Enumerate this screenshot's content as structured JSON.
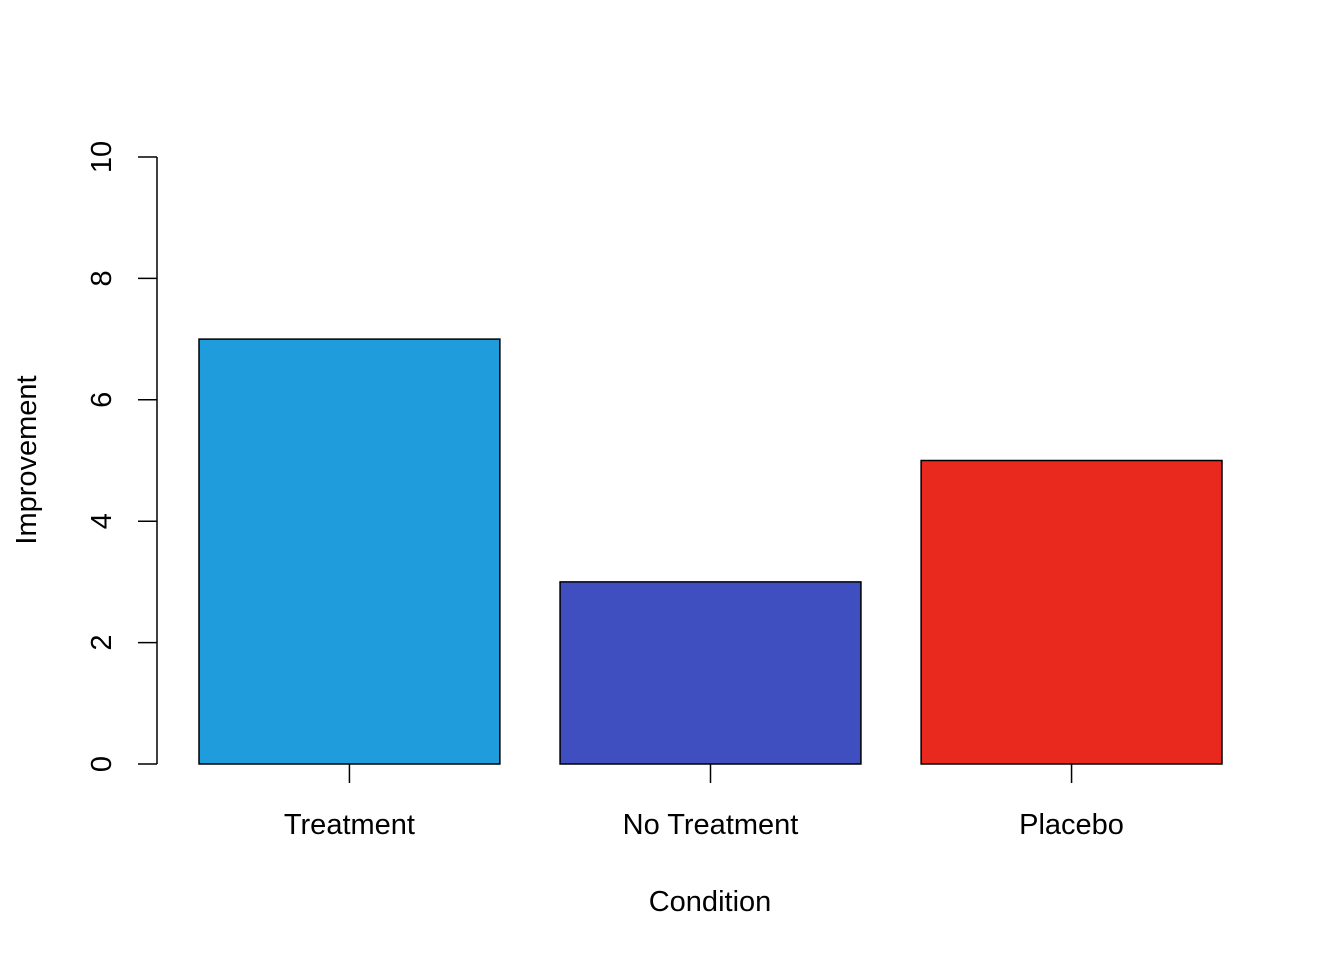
{
  "chart_data": {
    "type": "bar",
    "title": "",
    "xlabel": "Condition",
    "ylabel": "Improvement",
    "categories": [
      "Treatment",
      "No Treatment",
      "Placebo"
    ],
    "values": [
      7,
      3,
      5
    ],
    "colors": [
      "#1e9cdc",
      "#3f4fbf",
      "#e9291e"
    ],
    "ylim": [
      0,
      10
    ],
    "yticks": [
      0,
      2,
      4,
      6,
      8,
      10
    ],
    "ytick_labels": [
      "0",
      "2",
      "4",
      "6",
      "8",
      "10"
    ],
    "grid": false,
    "legend": "none"
  }
}
